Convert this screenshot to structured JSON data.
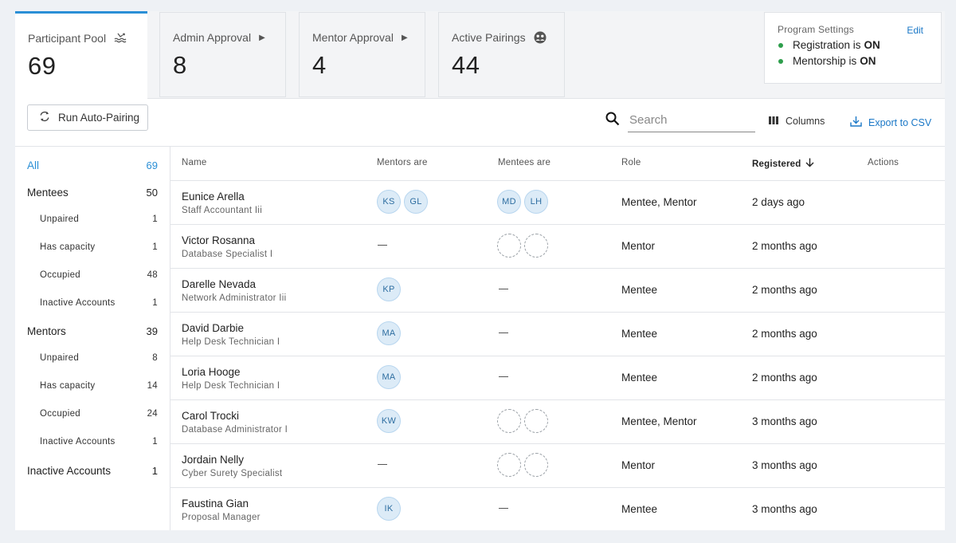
{
  "tabs": [
    {
      "label": "Participant Pool",
      "count": "69",
      "icon": "swim-pool-icon"
    },
    {
      "label": "Admin Approval",
      "count": "8",
      "icon": "caret-right-icon"
    },
    {
      "label": "Mentor Approval",
      "count": "4",
      "icon": "caret-right-icon"
    },
    {
      "label": "Active Pairings",
      "count": "44",
      "icon": "group-icon"
    }
  ],
  "settings": {
    "title": "Program Settings",
    "edit": "Edit",
    "registration_label": "Registration is",
    "registration_value": "ON",
    "mentorship_label": "Mentorship is",
    "mentorship_value": "ON",
    "status_color": "#2e9e4c"
  },
  "toolbar": {
    "auto_pairing": "Run Auto-Pairing",
    "search_placeholder": "Search",
    "columns": "Columns",
    "export": "Export to CSV"
  },
  "sidebar": {
    "all": {
      "label": "All",
      "count": "69"
    },
    "mentees": {
      "label": "Mentees",
      "count": "50",
      "subs": [
        {
          "label": "Unpaired",
          "count": "1"
        },
        {
          "label": "Has capacity",
          "count": "1"
        },
        {
          "label": "Occupied",
          "count": "48"
        },
        {
          "label": "Inactive Accounts",
          "count": "1"
        }
      ]
    },
    "mentors": {
      "label": "Mentors",
      "count": "39",
      "subs": [
        {
          "label": "Unpaired",
          "count": "8"
        },
        {
          "label": "Has capacity",
          "count": "14"
        },
        {
          "label": "Occupied",
          "count": "24"
        },
        {
          "label": "Inactive Accounts",
          "count": "1"
        }
      ]
    },
    "inactive": {
      "label": "Inactive Accounts",
      "count": "1"
    }
  },
  "table": {
    "headers": {
      "name": "Name",
      "mentors": "Mentors are",
      "mentees": "Mentees are",
      "role": "Role",
      "registered": "Registered",
      "actions": "Actions"
    },
    "rows": [
      {
        "name": "Eunice Arella",
        "title": "Staff Accountant Iii",
        "mentors": [
          "KS",
          "GL"
        ],
        "mentees": [
          "MD",
          "LH"
        ],
        "role": "Mentee, Mentor",
        "registered": "2 days ago"
      },
      {
        "name": "Victor Rosanna",
        "title": "Database Specialist I",
        "mentors": "—",
        "mentees": [
          "",
          ""
        ],
        "role": "Mentor",
        "registered": "2 months ago"
      },
      {
        "name": "Darelle Nevada",
        "title": "Network Administrator Iii",
        "mentors": [
          "KP"
        ],
        "mentees": "—",
        "role": "Mentee",
        "registered": "2 months ago"
      },
      {
        "name": "David Darbie",
        "title": "Help Desk Technician I",
        "mentors": [
          "MA"
        ],
        "mentees": "—",
        "role": "Mentee",
        "registered": "2 months ago"
      },
      {
        "name": "Loria Hooge",
        "title": "Help Desk Technician I",
        "mentors": [
          "MA"
        ],
        "mentees": "—",
        "role": "Mentee",
        "registered": "2 months ago"
      },
      {
        "name": "Carol Trocki",
        "title": "Database Administrator I",
        "mentors": [
          "KW"
        ],
        "mentees": [
          "",
          ""
        ],
        "role": "Mentee, Mentor",
        "registered": "3 months ago"
      },
      {
        "name": "Jordain Nelly",
        "title": "Cyber Surety Specialist",
        "mentors": "—",
        "mentees": [
          "",
          ""
        ],
        "role": "Mentor",
        "registered": "3 months ago"
      },
      {
        "name": "Faustina Gian",
        "title": "Proposal Manager",
        "mentors": [
          "IK"
        ],
        "mentees": "—",
        "role": "Mentee",
        "registered": "3 months ago"
      }
    ]
  }
}
